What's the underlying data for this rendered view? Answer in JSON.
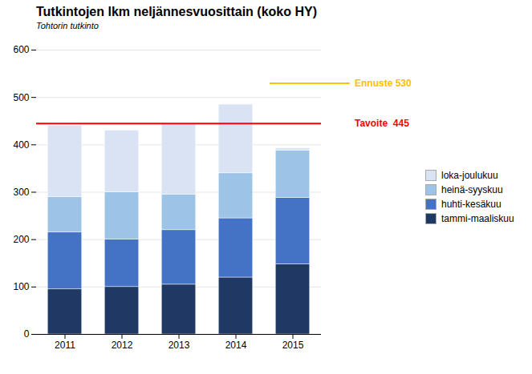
{
  "chart_data": {
    "type": "bar",
    "stacked": true,
    "title": "Tutkintojen lkm neljännesvuosittain (koko HY)",
    "subtitle": "Tohtorin tutkinto",
    "categories": [
      "2011",
      "2012",
      "2013",
      "2014",
      "2015"
    ],
    "series": [
      {
        "name": "tammi-maaliskuu",
        "color": "#1f3864",
        "values": [
          95,
          100,
          105,
          120,
          148
        ]
      },
      {
        "name": "huhti-kesäkuu",
        "color": "#4472c4",
        "values": [
          120,
          100,
          115,
          125,
          140
        ]
      },
      {
        "name": "heinä-syyskuu",
        "color": "#9dc3e6",
        "values": [
          75,
          100,
          75,
          95,
          100
        ]
      },
      {
        "name": "loka-joulukuu",
        "color": "#dae3f3",
        "values": [
          150,
          130,
          150,
          145,
          5
        ]
      }
    ],
    "ylim": [
      0,
      600
    ],
    "yticks": [
      0,
      100,
      200,
      300,
      400,
      500,
      600
    ],
    "grid": true,
    "legend": "right",
    "annotations": [
      {
        "label": "Tavoite  445",
        "value": 445,
        "color": "#ff0000"
      },
      {
        "label": "Ennuste 530",
        "value": 530,
        "color": "#ffc000"
      }
    ]
  }
}
